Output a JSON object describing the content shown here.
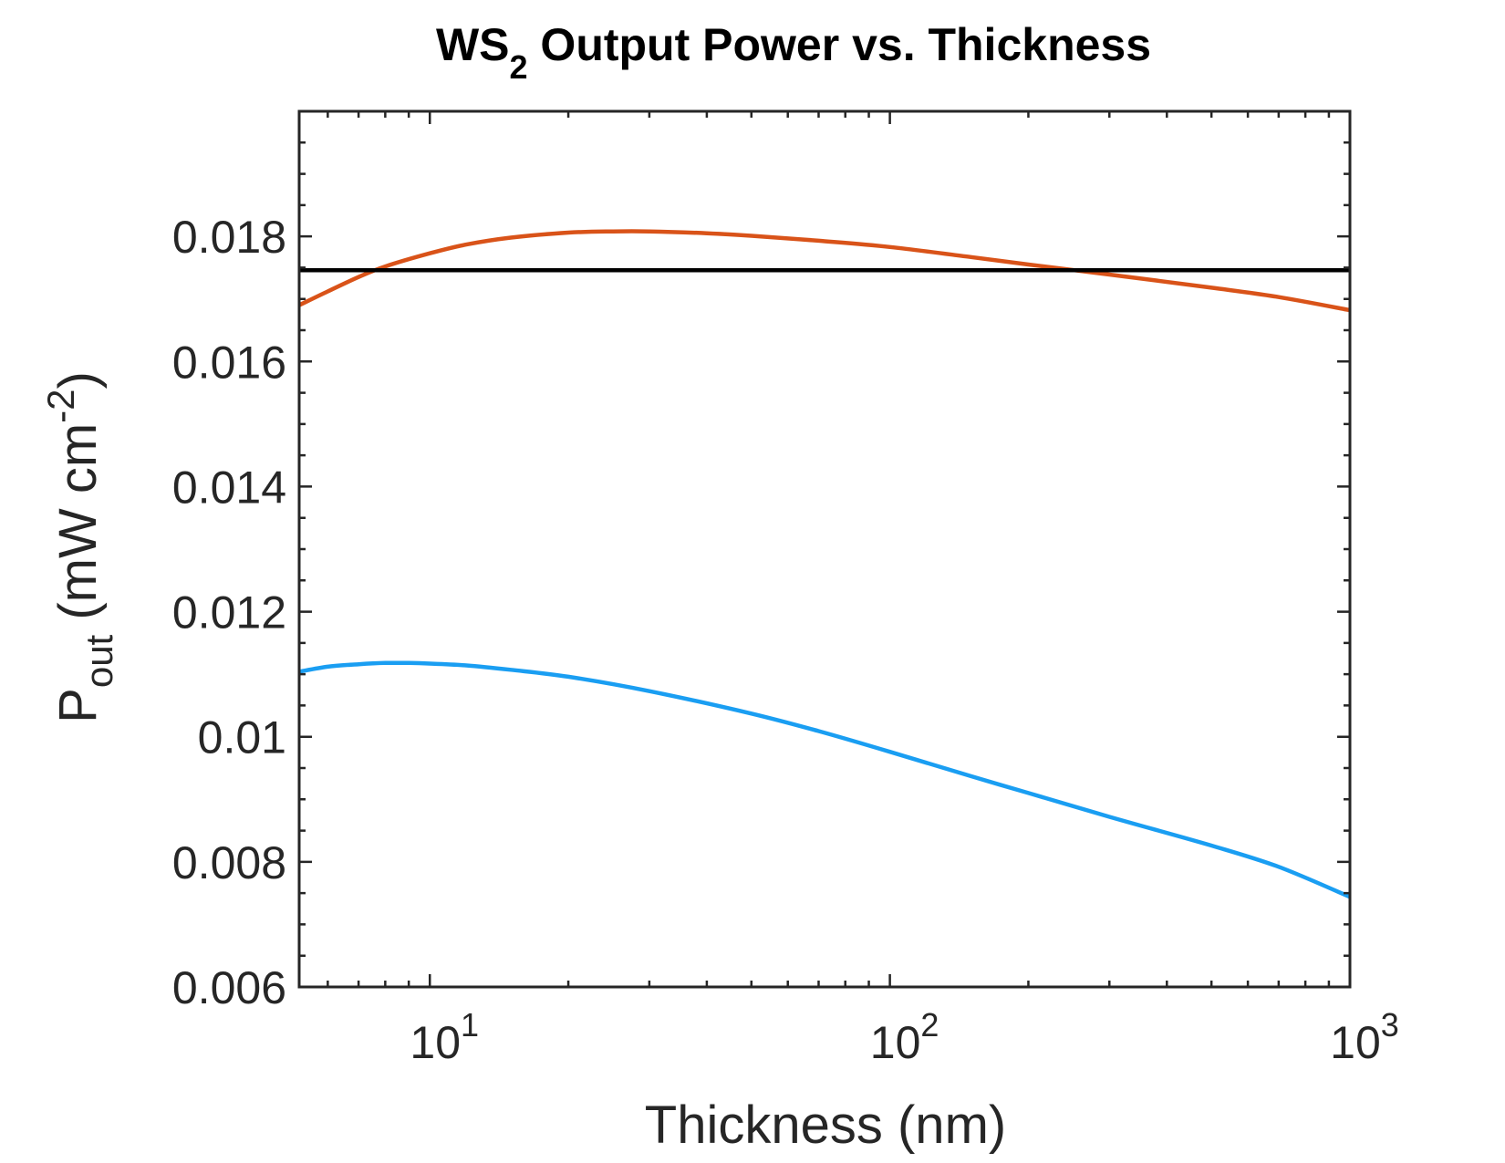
{
  "chart_data": {
    "type": "line",
    "title": {
      "text": "WS",
      "subscript": "2",
      "rest": " Output Power vs. Thickness"
    },
    "xlabel": "Thickness (nm)",
    "ylabel": {
      "base": "P",
      "subscript": "out",
      "unit_pre": " (mW cm",
      "unit_sup": "-2",
      "unit_post": ")"
    },
    "x_scale": "log",
    "xlim": [
      5.2,
      1000
    ],
    "ylim": [
      0.006,
      0.02
    ],
    "x_ticks": [
      {
        "value": 10,
        "base": "10",
        "exp": "1"
      },
      {
        "value": 100,
        "base": "10",
        "exp": "2"
      },
      {
        "value": 1000,
        "base": "10",
        "exp": "3"
      }
    ],
    "y_ticks": [
      {
        "value": 0.006,
        "label": "0.006"
      },
      {
        "value": 0.008,
        "label": "0.008"
      },
      {
        "value": 0.01,
        "label": "0.01"
      },
      {
        "value": 0.012,
        "label": "0.012"
      },
      {
        "value": 0.014,
        "label": "0.014"
      },
      {
        "value": 0.016,
        "label": "0.016"
      },
      {
        "value": 0.018,
        "label": "0.018"
      }
    ],
    "grid": false,
    "box": true,
    "series": [
      {
        "color": "#D95319",
        "x": [
          5.2,
          6,
          7,
          8,
          10,
          12,
          15,
          20,
          25,
          30,
          40,
          50,
          70,
          100,
          150,
          200,
          300,
          500,
          700,
          1000
        ],
        "y": [
          0.0169,
          0.01712,
          0.01735,
          0.01752,
          0.01773,
          0.01787,
          0.01798,
          0.01806,
          0.01808,
          0.01808,
          0.01805,
          0.01801,
          0.01793,
          0.01783,
          0.01767,
          0.01755,
          0.01739,
          0.01718,
          0.01703,
          0.01682
        ]
      },
      {
        "color": "#000000",
        "x": [
          5.2,
          1000
        ],
        "y": [
          0.01746,
          0.01746
        ]
      },
      {
        "color": "#1A9EF2",
        "x": [
          5.2,
          6,
          7,
          8,
          9,
          10,
          12,
          15,
          20,
          30,
          50,
          70,
          100,
          150,
          200,
          300,
          500,
          700,
          1000
        ],
        "y": [
          0.01104,
          0.01112,
          0.01116,
          0.01118,
          0.01118,
          0.01117,
          0.01114,
          0.01107,
          0.01096,
          0.01073,
          0.01037,
          0.01009,
          0.00976,
          0.00937,
          0.0091,
          0.00872,
          0.00826,
          0.00792,
          0.00744
        ]
      }
    ]
  }
}
